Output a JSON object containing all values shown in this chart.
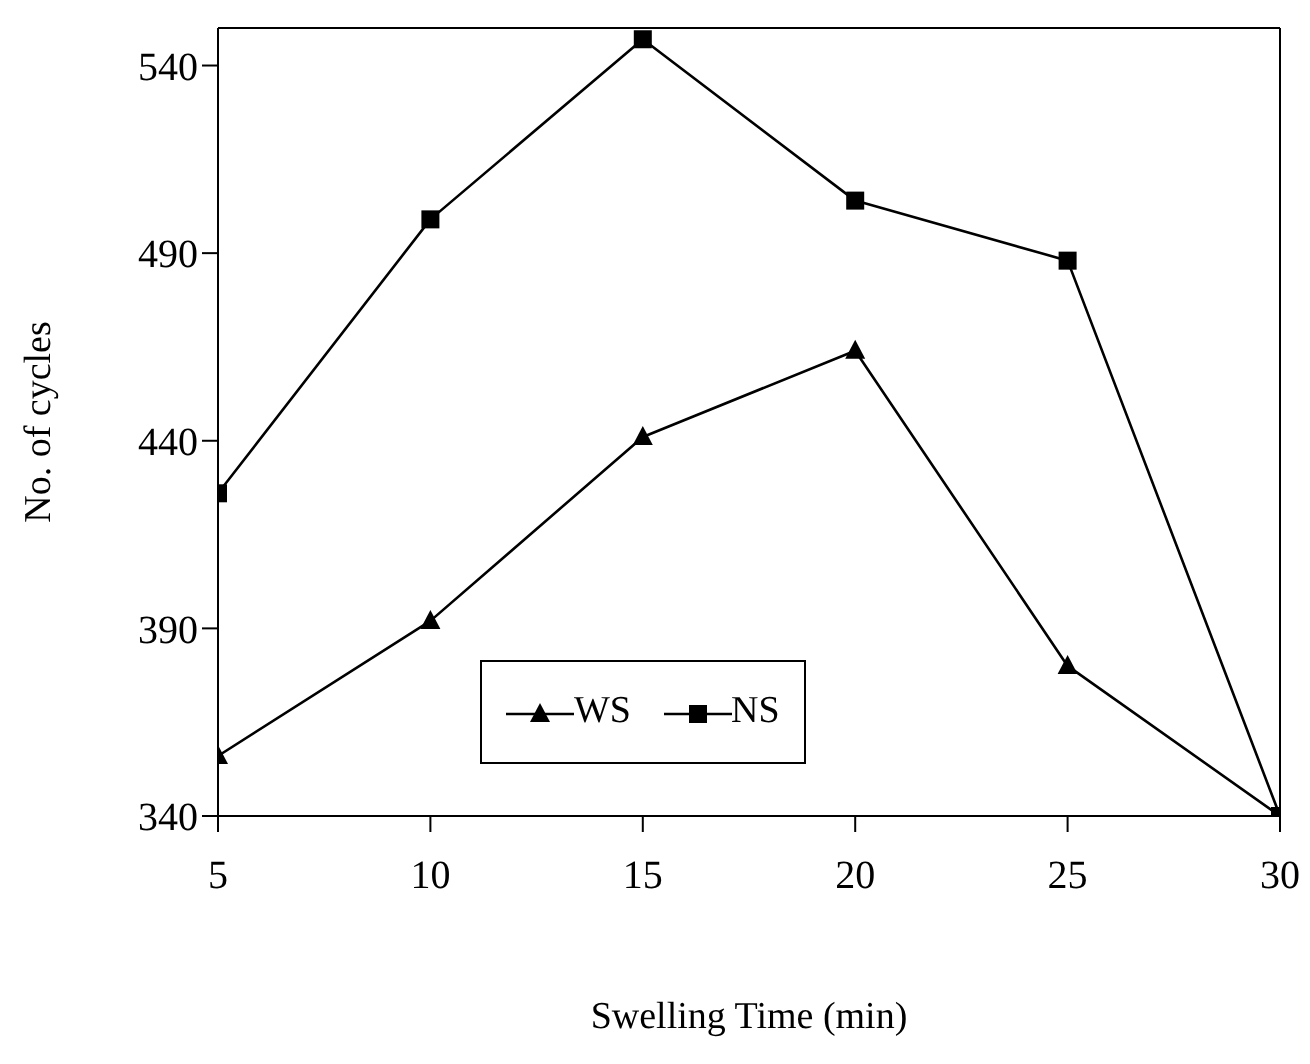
{
  "chart_data": {
    "type": "line",
    "xlabel": "Swelling Time (min)",
    "ylabel": "No. of cycles",
    "x": [
      5,
      10,
      15,
      20,
      25,
      30
    ],
    "series": [
      {
        "name": "WS",
        "color": "#000000",
        "marker": "triangle",
        "values": [
          356,
          392,
          441,
          464,
          380,
          340
        ]
      },
      {
        "name": "NS",
        "color": "#000000",
        "marker": "square",
        "values": [
          426,
          499,
          547,
          504,
          488,
          340
        ]
      }
    ],
    "xlim": [
      5,
      30
    ],
    "xticks": [
      5,
      10,
      15,
      20,
      25,
      30
    ],
    "ylim": [
      340,
      550
    ],
    "yticks": [
      340,
      390,
      440,
      490,
      540
    ],
    "legend": "bottom"
  }
}
